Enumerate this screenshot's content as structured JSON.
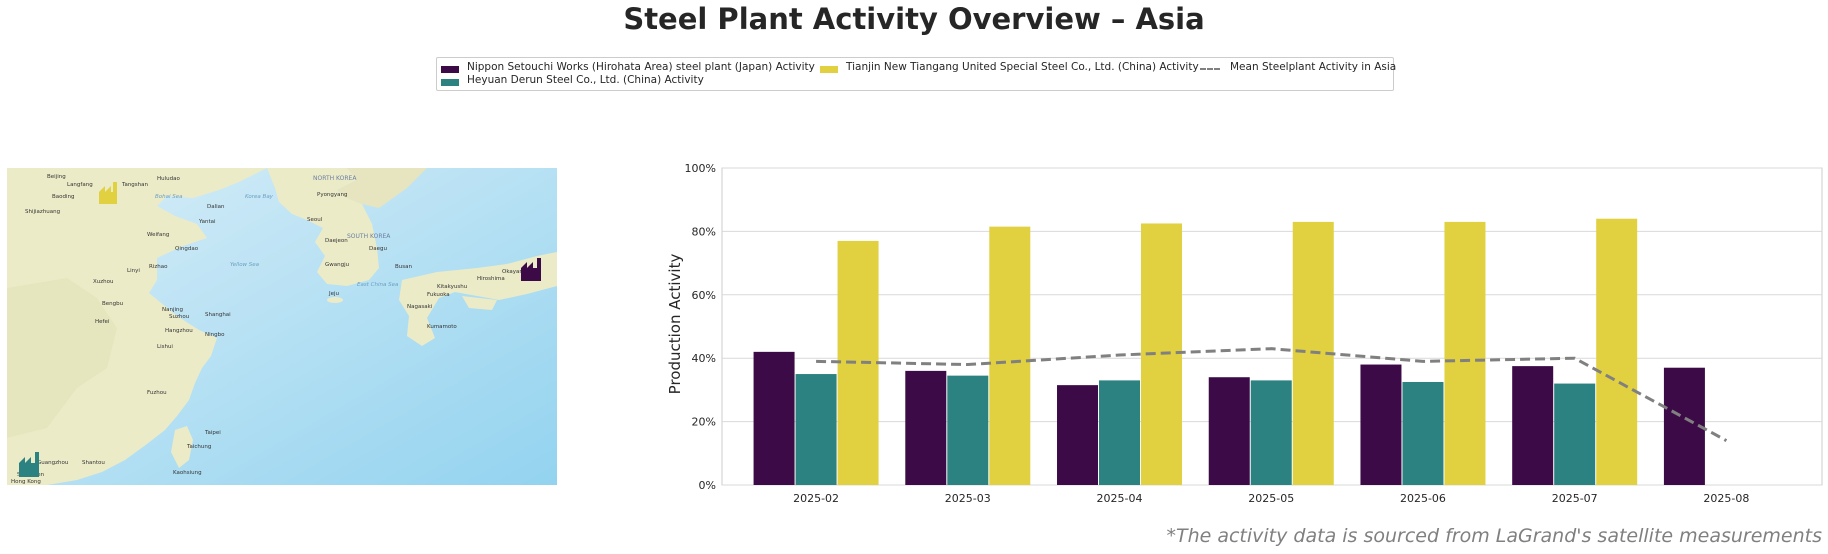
{
  "title": "Steel Plant Activity Overview – Asia",
  "footnote": "*The activity data is sourced from LaGrand's satellite measurements",
  "map": {
    "labels": [
      "Beijing",
      "Tangshan",
      "Langfang",
      "Baoding",
      "Shijiazhuang",
      "Huludao",
      "Dalian",
      "Yantai",
      "Weifang",
      "Qingdao",
      "Rizhao",
      "Linyi",
      "Xuzhou",
      "Bengbu",
      "Hefei",
      "Nanjing",
      "Suzhou",
      "Shanghai",
      "Hangzhou",
      "Ningbo",
      "Lishui",
      "Fuzhou",
      "Taipei",
      "Taichung",
      "Kaohsiung",
      "Shantou",
      "Guangzhou",
      "Shenzhen",
      "Hong Kong",
      "Seoul",
      "Daejeon",
      "Daegu",
      "Busan",
      "Gwangju",
      "Jeju",
      "Pyongyang",
      "Fukuoka",
      "Kitakyushu",
      "Hiroshima",
      "Okayama",
      "Nagasaki",
      "Kumamoto",
      "NORTH KOREA",
      "SOUTH KOREA",
      "Yellow Sea",
      "Korea Bay",
      "Bohai Sea",
      "East China Sea"
    ],
    "plant_icons": [
      "factory-icon-nippon",
      "factory-icon-tianjin",
      "factory-icon-heyuan"
    ]
  },
  "legend": {
    "items": [
      {
        "label": "Nippon Setouchi Works (Hirohata Area) steel plant (Japan) Activity",
        "color": "#3b0a47"
      },
      {
        "label": "Heyuan Derun Steel Co., Ltd. (China) Activity",
        "color": "#2c8280"
      },
      {
        "label": "Tianjin New Tiangang United Special Steel Co., Ltd. (China) Activity",
        "color": "#e1d040"
      },
      {
        "label": "Mean Steelplant Activity in Asia",
        "color": "#808080",
        "style": "dashed"
      }
    ]
  },
  "chart_data": {
    "type": "bar",
    "categories": [
      "2025-02",
      "2025-03",
      "2025-04",
      "2025-05",
      "2025-06",
      "2025-07",
      "2025-08"
    ],
    "series": [
      {
        "name": "Nippon Setouchi Works (Hirohata Area) steel plant (Japan) Activity",
        "color": "#3b0a47",
        "values": [
          42,
          36,
          31.5,
          34,
          38,
          37.5,
          37
        ]
      },
      {
        "name": "Heyuan Derun Steel Co., Ltd. (China) Activity",
        "color": "#2c8280",
        "values": [
          35,
          34.5,
          33,
          33,
          32.5,
          32,
          null
        ]
      },
      {
        "name": "Tianjin New Tiangang United Special Steel Co., Ltd. (China) Activity",
        "color": "#e1d040",
        "values": [
          77,
          81.5,
          82.5,
          83,
          83,
          84,
          null
        ]
      }
    ],
    "line": {
      "name": "Mean Steelplant Activity in Asia",
      "color": "#808080",
      "style": "dashed",
      "values": [
        39,
        38,
        41,
        43,
        39,
        40,
        14
      ]
    },
    "ylabel": "Production Activity",
    "xlabel": "",
    "ylim": [
      0,
      100
    ],
    "yticks": [
      "0%",
      "20%",
      "40%",
      "60%",
      "80%",
      "100%"
    ],
    "grid": true
  }
}
